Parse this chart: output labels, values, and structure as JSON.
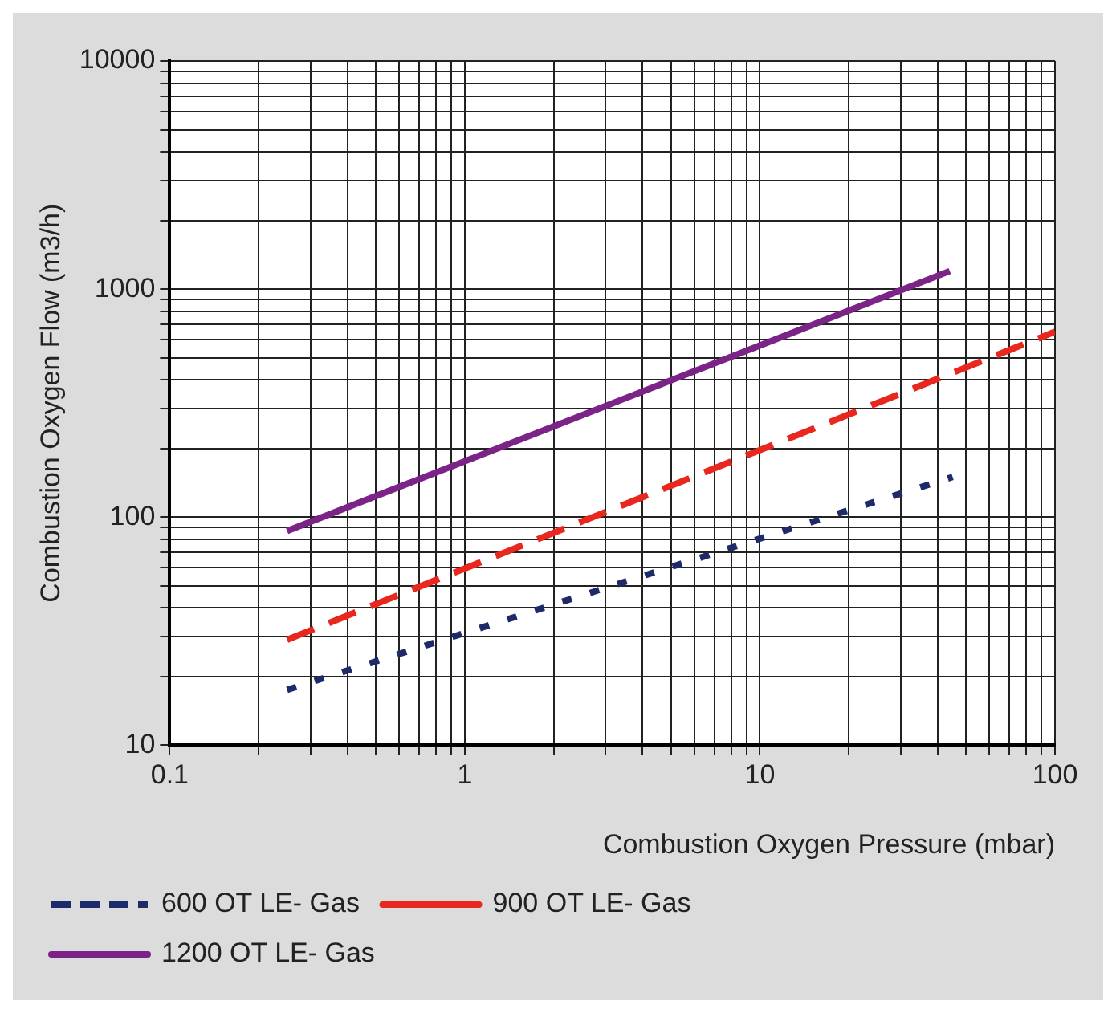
{
  "chart_data": {
    "type": "line",
    "xlabel": "Combustion Oxygen Pressure (mbar)",
    "ylabel": "Combustion Oxygen Flow (m3/h)",
    "log": "xy",
    "grid": true,
    "legend": "bottom",
    "marker": "none",
    "xlim": [
      0.1,
      100
    ],
    "ylim": [
      10,
      10000
    ],
    "xticks": [
      0.1,
      {
        "value": 0.2,
        "label": null
      },
      {
        "value": 0.3,
        "label": null
      },
      {
        "value": 0.4,
        "label": null
      },
      {
        "value": 0.5,
        "label": null
      },
      {
        "value": 0.6,
        "label": null
      },
      {
        "value": 0.7,
        "label": null
      },
      {
        "value": 0.8,
        "label": null
      },
      {
        "value": 0.9,
        "label": null
      },
      1,
      {
        "value": 2,
        "label": null
      },
      {
        "value": 3,
        "label": null
      },
      {
        "value": 4,
        "label": null
      },
      {
        "value": 5,
        "label": null
      },
      {
        "value": 6,
        "label": null
      },
      {
        "value": 7,
        "label": null
      },
      {
        "value": 8,
        "label": null
      },
      {
        "value": 9,
        "label": null
      },
      10,
      {
        "value": 20,
        "label": null
      },
      {
        "value": 30,
        "label": null
      },
      {
        "value": 40,
        "label": null
      },
      {
        "value": 50,
        "label": null
      },
      {
        "value": 60,
        "label": null
      },
      {
        "value": 70,
        "label": null
      },
      {
        "value": 80,
        "label": null
      },
      {
        "value": 90,
        "label": null
      },
      100
    ],
    "yticks": [
      10,
      {
        "value": 20,
        "label": null
      },
      {
        "value": 30,
        "label": null
      },
      {
        "value": 40,
        "label": null
      },
      {
        "value": 50,
        "label": null
      },
      {
        "value": 60,
        "label": null
      },
      {
        "value": 70,
        "label": null
      },
      {
        "value": 80,
        "label": null
      },
      {
        "value": 90,
        "label": null
      },
      100,
      {
        "value": 200,
        "label": null
      },
      {
        "value": 300,
        "label": null
      },
      {
        "value": 400,
        "label": null
      },
      {
        "value": 500,
        "label": null
      },
      {
        "value": 600,
        "label": null
      },
      {
        "value": 700,
        "label": null
      },
      {
        "value": 800,
        "label": null
      },
      {
        "value": 900,
        "label": null
      },
      1000,
      {
        "value": 2000,
        "label": null
      },
      {
        "value": 3000,
        "label": null
      },
      {
        "value": 4000,
        "label": null
      },
      {
        "value": 5000,
        "label": null
      },
      {
        "value": 6000,
        "label": null
      },
      {
        "value": 7000,
        "label": null
      },
      {
        "value": 8000,
        "label": null
      },
      {
        "value": 9000,
        "label": null
      },
      10000
    ],
    "series": [
      {
        "name": "600 OT LE- Gas",
        "color": "#1f2a68",
        "line_style": "dotted",
        "x": [
          0.25,
          45
        ],
        "values": [
          17.5,
          150
        ]
      },
      {
        "name": "900 OT LE- Gas",
        "color": "#e8281e",
        "line_style": "dashed",
        "x": [
          0.25,
          100
        ],
        "values": [
          29,
          650
        ]
      },
      {
        "name": "1200 OT LE- Gas",
        "color": "#7b2387",
        "line_style": "solid",
        "x": [
          0.25,
          44
        ],
        "values": [
          87,
          1200
        ]
      }
    ]
  }
}
